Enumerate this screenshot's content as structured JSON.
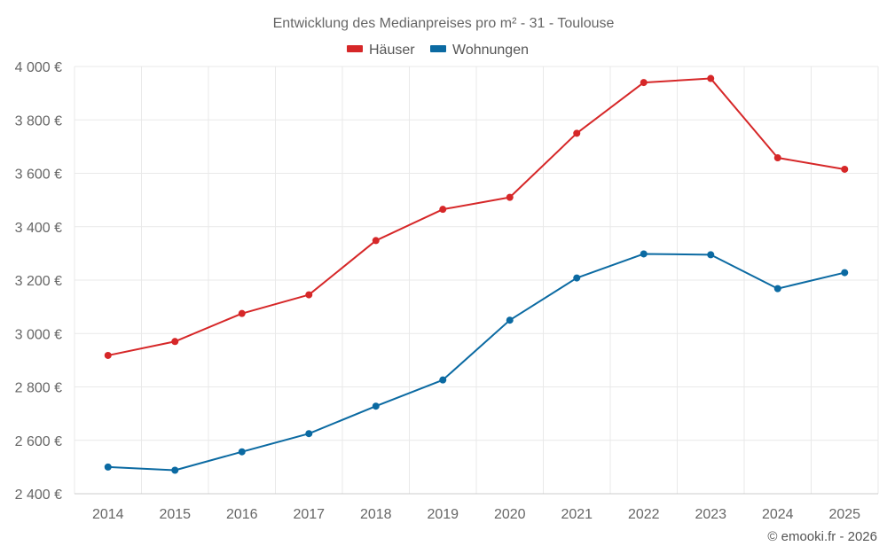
{
  "chart_data": {
    "type": "line",
    "title": "Entwicklung des Medianpreises pro m² - 31 - Toulouse",
    "categories": [
      "2014",
      "2015",
      "2016",
      "2017",
      "2018",
      "2019",
      "2020",
      "2021",
      "2022",
      "2023",
      "2024",
      "2025"
    ],
    "series": [
      {
        "name": "Häuser",
        "color": "#d62728",
        "values": [
          2918,
          2970,
          3075,
          3145,
          3348,
          3465,
          3510,
          3750,
          3940,
          3955,
          3658,
          3615
        ]
      },
      {
        "name": "Wohnungen",
        "color": "#0b6aa2",
        "values": [
          2500,
          2488,
          2557,
          2625,
          2728,
          2826,
          3050,
          3208,
          3298,
          3295,
          3168,
          3228
        ]
      }
    ],
    "ylim": [
      2400,
      4000
    ],
    "yticks": [
      2400,
      2600,
      2800,
      3000,
      3200,
      3400,
      3600,
      3800,
      4000
    ],
    "ytick_labels": [
      "2 400 €",
      "2 600 €",
      "2 800 €",
      "3 000 €",
      "3 200 €",
      "3 400 €",
      "3 600 €",
      "3 800 €",
      "4 000 €"
    ],
    "xlabel": "",
    "ylabel": "",
    "legend_position": "top-center",
    "grid": true
  },
  "credit": "© emooki.fr - 2026"
}
